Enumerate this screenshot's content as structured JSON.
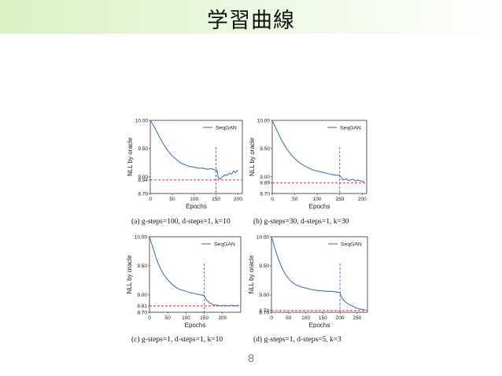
{
  "slide": {
    "title": "学習曲線",
    "page_number": "8"
  },
  "chart_data": [
    {
      "type": "line",
      "panel": "(a)",
      "caption": "g-steps=100, d-steps=1, k=10",
      "xlabel": "Epochs",
      "ylabel": "NLL by oracle",
      "xlim": [
        0,
        210
      ],
      "ylim": [
        8.7,
        10.0
      ],
      "x_ticks": [
        0,
        50,
        100,
        150,
        200
      ],
      "y_ticks": [
        {
          "v": 10.0,
          "t": "10.00"
        },
        {
          "v": 9.5,
          "t": "9.50"
        },
        {
          "v": 9.0,
          "t": "9.00"
        },
        {
          "v": 8.94,
          "t": "8.94"
        },
        {
          "v": 8.7,
          "t": "8.70"
        }
      ],
      "hline": 8.94,
      "vline": 150,
      "legend": "top-right",
      "series": [
        {
          "name": "SeqGAN",
          "points": [
            [
              0,
              10.0
            ],
            [
              10,
              9.87
            ],
            [
              20,
              9.72
            ],
            [
              30,
              9.58
            ],
            [
              40,
              9.46
            ],
            [
              50,
              9.37
            ],
            [
              60,
              9.3
            ],
            [
              70,
              9.24
            ],
            [
              80,
              9.21
            ],
            [
              90,
              9.18
            ],
            [
              100,
              9.17
            ],
            [
              110,
              9.15
            ],
            [
              120,
              9.15
            ],
            [
              130,
              9.13
            ],
            [
              140,
              9.14
            ],
            [
              150,
              9.11
            ],
            [
              152,
              9.12
            ],
            [
              155,
              8.98
            ],
            [
              160,
              8.96
            ],
            [
              165,
              9.0
            ],
            [
              170,
              9.03
            ],
            [
              175,
              9.02
            ],
            [
              180,
              9.06
            ],
            [
              185,
              9.04
            ],
            [
              190,
              9.1
            ],
            [
              195,
              9.07
            ],
            [
              200,
              9.12
            ]
          ]
        }
      ]
    },
    {
      "type": "line",
      "panel": "(b)",
      "caption": "g-steps=30, d-steps=1, k=30",
      "xlabel": "Epochs",
      "ylabel": "NLL by oracle",
      "xlim": [
        0,
        210
      ],
      "ylim": [
        8.7,
        10.0
      ],
      "x_ticks": [
        0,
        50,
        100,
        150,
        200
      ],
      "y_ticks": [
        {
          "v": 10.0,
          "t": "10.00"
        },
        {
          "v": 9.5,
          "t": "9.50"
        },
        {
          "v": 9.0,
          "t": "9.00"
        },
        {
          "v": 8.89,
          "t": "8.89"
        },
        {
          "v": 8.7,
          "t": "8.70"
        }
      ],
      "hline": 8.89,
      "vline": 150,
      "legend": "top-right",
      "series": [
        {
          "name": "SeqGAN",
          "points": [
            [
              0,
              10.0
            ],
            [
              10,
              9.83
            ],
            [
              20,
              9.66
            ],
            [
              30,
              9.52
            ],
            [
              40,
              9.41
            ],
            [
              50,
              9.32
            ],
            [
              60,
              9.25
            ],
            [
              70,
              9.2
            ],
            [
              80,
              9.16
            ],
            [
              90,
              9.12
            ],
            [
              100,
              9.1
            ],
            [
              110,
              9.08
            ],
            [
              120,
              9.06
            ],
            [
              130,
              9.04
            ],
            [
              140,
              9.03
            ],
            [
              150,
              9.02
            ],
            [
              153,
              8.99
            ],
            [
              158,
              8.94
            ],
            [
              165,
              8.96
            ],
            [
              170,
              8.93
            ],
            [
              180,
              8.95
            ],
            [
              185,
              8.92
            ],
            [
              190,
              8.94
            ],
            [
              200,
              8.92
            ],
            [
              205,
              8.9
            ]
          ]
        }
      ]
    },
    {
      "type": "line",
      "panel": "(c)",
      "caption": "g-steps=1, d-steps=1, k=10",
      "xlabel": "Epochs",
      "ylabel": "NLL by oracle",
      "xlim": [
        0,
        250
      ],
      "ylim": [
        8.7,
        10.0
      ],
      "x_ticks": [
        0,
        50,
        100,
        150,
        200
      ],
      "y_ticks": [
        {
          "v": 10.0,
          "t": "10.00"
        },
        {
          "v": 9.5,
          "t": "9.50"
        },
        {
          "v": 9.0,
          "t": "9.00"
        },
        {
          "v": 8.81,
          "t": "8.81"
        },
        {
          "v": 8.7,
          "t": "8.70"
        }
      ],
      "hline": 8.81,
      "vline": 150,
      "legend": "top-right",
      "series": [
        {
          "name": "SeqGAN",
          "points": [
            [
              0,
              10.0
            ],
            [
              10,
              9.8
            ],
            [
              20,
              9.6
            ],
            [
              30,
              9.45
            ],
            [
              40,
              9.34
            ],
            [
              50,
              9.26
            ],
            [
              60,
              9.19
            ],
            [
              70,
              9.14
            ],
            [
              80,
              9.1
            ],
            [
              90,
              9.08
            ],
            [
              100,
              9.06
            ],
            [
              110,
              9.04
            ],
            [
              120,
              9.03
            ],
            [
              130,
              9.01
            ],
            [
              140,
              9.0
            ],
            [
              150,
              8.99
            ],
            [
              155,
              8.92
            ],
            [
              165,
              8.86
            ],
            [
              175,
              8.83
            ],
            [
              185,
              8.82
            ],
            [
              195,
              8.81
            ],
            [
              205,
              8.82
            ],
            [
              215,
              8.81
            ],
            [
              225,
              8.82
            ],
            [
              235,
              8.81
            ],
            [
              245,
              8.82
            ]
          ]
        }
      ]
    },
    {
      "type": "line",
      "panel": "(d)",
      "caption": "g-steps=1, d-steps=5, k=3",
      "xlabel": "Epochs",
      "ylabel": "NLL by oracle",
      "xlim": [
        0,
        280
      ],
      "ylim": [
        8.7,
        10.0
      ],
      "x_ticks": [
        0,
        50,
        100,
        150,
        200,
        250
      ],
      "y_ticks": [
        {
          "v": 10.0,
          "t": "10.00"
        },
        {
          "v": 9.5,
          "t": "9.50"
        },
        {
          "v": 9.0,
          "t": "9.00"
        },
        {
          "v": 8.73,
          "t": "8.73"
        },
        {
          "v": 8.7,
          "t": "8.70"
        }
      ],
      "hline": 8.73,
      "vline": 200,
      "legend": "top-right",
      "series": [
        {
          "name": "SeqGAN",
          "points": [
            [
              0,
              10.0
            ],
            [
              10,
              9.8
            ],
            [
              20,
              9.62
            ],
            [
              30,
              9.47
            ],
            [
              40,
              9.36
            ],
            [
              50,
              9.28
            ],
            [
              60,
              9.22
            ],
            [
              70,
              9.18
            ],
            [
              80,
              9.15
            ],
            [
              90,
              9.13
            ],
            [
              100,
              9.12
            ],
            [
              110,
              9.1
            ],
            [
              120,
              9.09
            ],
            [
              130,
              9.08
            ],
            [
              140,
              9.07
            ],
            [
              150,
              9.07
            ],
            [
              160,
              9.06
            ],
            [
              170,
              9.06
            ],
            [
              180,
              9.06
            ],
            [
              190,
              9.05
            ],
            [
              200,
              9.04
            ],
            [
              205,
              8.95
            ],
            [
              215,
              8.88
            ],
            [
              225,
              8.84
            ],
            [
              235,
              8.81
            ],
            [
              245,
              8.78
            ],
            [
              255,
              8.76
            ],
            [
              265,
              8.75
            ],
            [
              275,
              8.74
            ]
          ]
        }
      ]
    }
  ]
}
